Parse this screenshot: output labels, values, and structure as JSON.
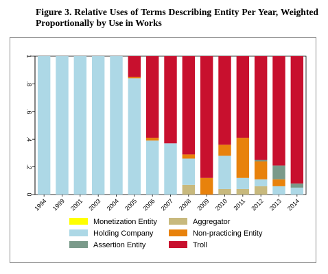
{
  "figure": {
    "title": "Figure 3. Relative Uses of Terms Describing Entity Per Year, Weighted Proportionally by Use in Works"
  },
  "chart_data": {
    "type": "bar",
    "stacked": true,
    "title": "Figure 3. Relative Uses of Terms Describing Entity Per Year, Weighted Proportionally by Use in Works",
    "xlabel": "",
    "ylabel": "",
    "ylim": [
      0,
      1
    ],
    "yticks": [
      0,
      0.2,
      0.4,
      0.6,
      0.8,
      1
    ],
    "ytick_labels": [
      "0",
      ".2",
      ".4",
      ".6",
      ".8",
      "1"
    ],
    "grid": false,
    "legend_position": "bottom",
    "categories": [
      "1994",
      "1999",
      "2001",
      "2003",
      "2004",
      "2005",
      "2006",
      "2007",
      "2008",
      "2009",
      "2010",
      "2011",
      "2012",
      "2013",
      "2014"
    ],
    "series": [
      {
        "name": "Monetization Entity",
        "color": "#ffff00",
        "values": [
          0,
          0,
          0,
          0,
          0,
          0,
          0,
          0,
          0,
          0,
          0,
          0,
          0,
          0,
          0
        ]
      },
      {
        "name": "Aggregator",
        "color": "#c8b97d",
        "values": [
          0,
          0,
          0,
          0,
          0,
          0,
          0,
          0,
          0.07,
          0,
          0.04,
          0.04,
          0.06,
          0,
          0
        ]
      },
      {
        "name": "Holding Company",
        "color": "#add8e6",
        "values": [
          1,
          1,
          1,
          1,
          1,
          0.84,
          0.39,
          0.37,
          0.19,
          0,
          0.24,
          0.08,
          0.05,
          0.06,
          0.05
        ]
      },
      {
        "name": "Non-practicing Entity",
        "color": "#e8820c",
        "values": [
          0,
          0,
          0,
          0,
          0,
          0.01,
          0.02,
          0,
          0.03,
          0.12,
          0.08,
          0.29,
          0.13,
          0.05,
          0
        ]
      },
      {
        "name": "Assertion Entity",
        "color": "#7a9a8a",
        "values": [
          0,
          0,
          0,
          0,
          0,
          0,
          0,
          0,
          0,
          0,
          0,
          0,
          0.01,
          0.1,
          0.03
        ]
      },
      {
        "name": "Troll",
        "color": "#c8102e",
        "values": [
          0,
          0,
          0,
          0,
          0,
          0.15,
          0.59,
          0.63,
          0.71,
          0.88,
          0.64,
          0.59,
          0.75,
          0.79,
          0.92
        ]
      }
    ],
    "legend_order": [
      "Monetization Entity",
      "Aggregator",
      "Holding Company",
      "Non-practicing Entity",
      "Assertion Entity",
      "Troll"
    ]
  }
}
